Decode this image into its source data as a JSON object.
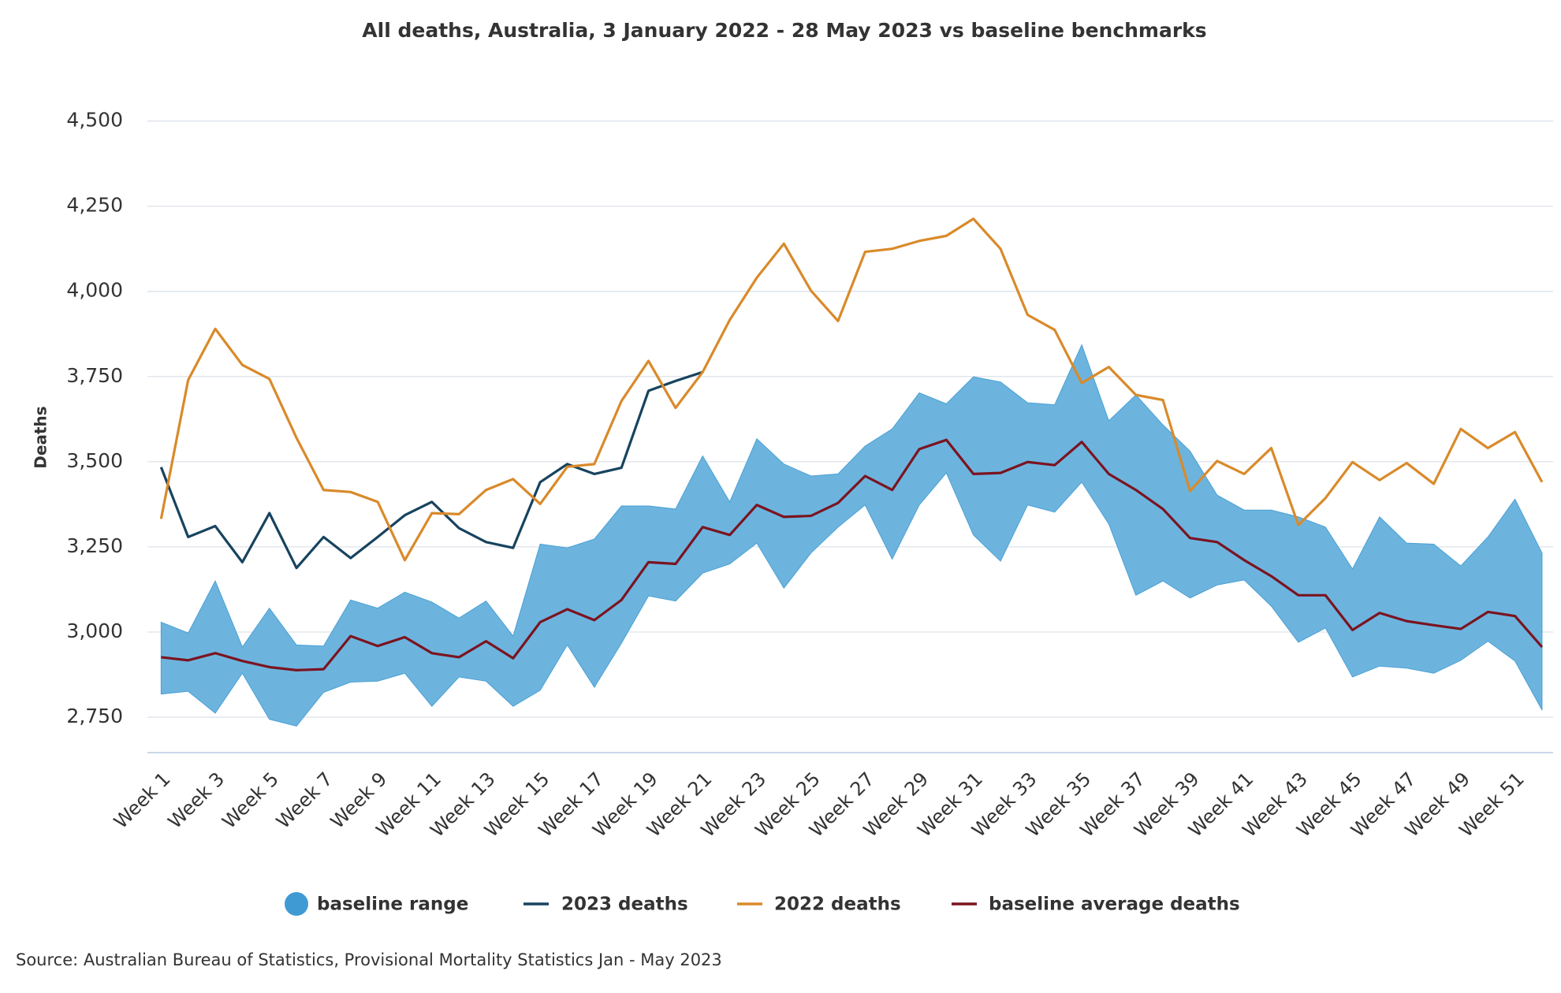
{
  "chart_data": {
    "type": "line",
    "title": "All deaths, Australia, 3 January 2022 - 28 May 2023 vs baseline benchmarks",
    "y_label": "Deaths",
    "source": "Source: Australian Bureau of Statistics, Provisional Mortality Statistics Jan - May 2023",
    "categories": [
      "Week 1",
      null,
      "Week 3",
      null,
      "Week 5",
      null,
      "Week 7",
      null,
      "Week 9",
      null,
      "Week 11",
      null,
      "Week 13",
      null,
      "Week 15",
      null,
      "Week 17",
      null,
      "Week 19",
      null,
      "Week 21",
      null,
      "Week 23",
      null,
      "Week 25",
      null,
      "Week 27",
      null,
      "Week 29",
      null,
      "Week 31",
      null,
      "Week 33",
      null,
      "Week 35",
      null,
      "Week 37",
      null,
      "Week 39",
      null,
      "Week 41",
      null,
      "Week 43",
      null,
      "Week 45",
      null,
      "Week 47",
      null,
      "Week 49",
      null,
      "Week 51",
      null
    ],
    "ylim": [
      2650,
      4500
    ],
    "yticks": [
      {
        "value": 2750,
        "label": "2,750"
      },
      {
        "value": 3000,
        "label": "3,000"
      },
      {
        "value": 3250,
        "label": "3,250"
      },
      {
        "value": 3500,
        "label": "3,500"
      },
      {
        "value": 3750,
        "label": "3,750"
      },
      {
        "value": 4000,
        "label": "4,000"
      },
      {
        "value": 4250,
        "label": "4,250"
      },
      {
        "value": 4500,
        "label": "4,500"
      }
    ],
    "grid": true,
    "series": [
      {
        "name": "baseline range",
        "type": "range",
        "color": "#6cb4de",
        "upper": [
          3029,
          2997,
          3150,
          2956,
          3070,
          2962,
          2959,
          3094,
          3070,
          3117,
          3088,
          3041,
          3091,
          2988,
          3258,
          3247,
          3273,
          3370,
          3370,
          3361,
          3517,
          3382,
          3567,
          3493,
          3458,
          3464,
          3546,
          3596,
          3702,
          3670,
          3749,
          3734,
          3673,
          3667,
          3843,
          3620,
          3696,
          3608,
          3531,
          3402,
          3358,
          3358,
          3338,
          3308,
          3185,
          3338,
          3261,
          3258,
          3194,
          3279,
          3390,
          3232
        ],
        "lower": [
          2818,
          2826,
          2762,
          2879,
          2744,
          2724,
          2823,
          2853,
          2856,
          2879,
          2782,
          2868,
          2856,
          2782,
          2829,
          2962,
          2838,
          2967,
          3106,
          3091,
          3173,
          3200,
          3261,
          3129,
          3232,
          3308,
          3373,
          3214,
          3373,
          3467,
          3285,
          3208,
          3373,
          3352,
          3440,
          3317,
          3108,
          3150,
          3100,
          3138,
          3153,
          3076,
          2970,
          3012,
          2868,
          2900,
          2894,
          2879,
          2917,
          2973,
          2915,
          2771
        ]
      },
      {
        "name": "2023 deaths",
        "color": "#17435f",
        "values": [
          3484,
          3279,
          3311,
          3205,
          3349,
          3188,
          3279,
          3217,
          3279,
          3343,
          3382,
          3305,
          3264,
          3247,
          3440,
          3493,
          3464,
          3482,
          3708,
          3737,
          3763,
          null,
          null,
          null,
          null,
          null,
          null,
          null,
          null,
          null,
          null,
          null,
          null,
          null,
          null,
          null,
          null,
          null,
          null,
          null,
          null,
          null,
          null,
          null,
          null,
          null,
          null,
          null,
          null,
          null,
          null,
          null
        ]
      },
      {
        "name": "2022 deaths",
        "color": "#d98a2a",
        "values": [
          3332,
          3740,
          3890,
          3784,
          3743,
          3570,
          3417,
          3411,
          3382,
          3211,
          3349,
          3346,
          3417,
          3449,
          3376,
          3485,
          3493,
          3678,
          3796,
          3658,
          3763,
          3916,
          4040,
          4140,
          4002,
          3913,
          4116,
          4125,
          4148,
          4163,
          4213,
          4125,
          3931,
          3887,
          3731,
          3778,
          3696,
          3681,
          3414,
          3502,
          3464,
          3540,
          3314,
          3393,
          3499,
          3446,
          3496,
          3435,
          3596,
          3540,
          3587,
          3440
        ]
      },
      {
        "name": "baseline average deaths",
        "color": "#7b1420",
        "values": [
          2926,
          2917,
          2938,
          2915,
          2897,
          2888,
          2891,
          2988,
          2959,
          2985,
          2938,
          2926,
          2973,
          2923,
          3029,
          3067,
          3035,
          3094,
          3205,
          3200,
          3308,
          3285,
          3373,
          3338,
          3341,
          3379,
          3458,
          3417,
          3537,
          3564,
          3464,
          3467,
          3499,
          3490,
          3558,
          3464,
          3417,
          3361,
          3276,
          3264,
          3211,
          3164,
          3108,
          3108,
          3006,
          3056,
          3032,
          3020,
          3009,
          3059,
          3047,
          2956
        ]
      }
    ]
  }
}
